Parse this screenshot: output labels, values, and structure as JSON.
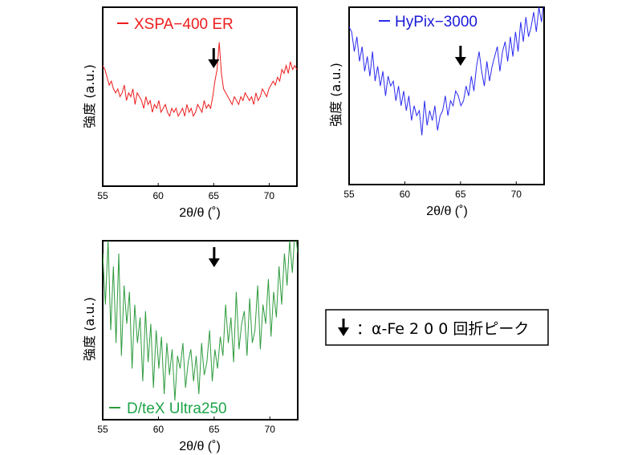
{
  "chart_data": [
    {
      "type": "line",
      "series": [
        {
          "name": "XSPA−400 ER",
          "color": "#ee1c1c",
          "x_start": 55,
          "x_end": 72.5,
          "values": [
            13,
            12,
            10,
            8,
            9,
            7,
            6,
            7,
            5,
            6,
            8,
            4,
            6,
            5,
            7,
            3,
            6,
            5,
            4,
            2,
            5,
            3,
            4,
            1,
            3,
            2,
            4,
            1,
            2,
            3,
            1,
            0,
            2,
            1,
            2,
            0,
            1,
            2,
            0,
            3,
            1,
            2,
            0,
            1,
            3,
            2,
            1,
            4,
            2,
            3,
            2,
            5,
            9,
            12,
            19,
            11,
            7,
            6,
            5,
            4,
            3,
            5,
            4,
            3,
            5,
            4,
            6,
            5,
            4,
            5,
            3,
            6,
            4,
            5,
            7,
            6,
            5,
            7,
            8,
            9,
            8,
            10,
            9,
            12,
            11,
            13,
            11,
            14,
            12,
            13,
            12
          ]
        }
      ],
      "xticks": [
        "55",
        "60",
        "65",
        "70"
      ],
      "xlim": [
        55,
        72.5
      ],
      "xlabel": "2θ/θ (˚)",
      "ylabel": "強度 (a.u.)",
      "arrow_at": 65
    },
    {
      "type": "line",
      "series": [
        {
          "name": "HyPix−3000",
          "color": "#2a2af0",
          "x_start": 55,
          "x_end": 72.5,
          "values": [
            20,
            19,
            15,
            18,
            13,
            16,
            11,
            14,
            10,
            15,
            9,
            12,
            8,
            11,
            6,
            10,
            8,
            9,
            5,
            8,
            4,
            7,
            3,
            6,
            1,
            4,
            2,
            3,
            -2,
            5,
            0,
            3,
            1,
            4,
            -1,
            2,
            3,
            6,
            2,
            5,
            4,
            7,
            6,
            4,
            5,
            8,
            6,
            10,
            7,
            12,
            15,
            11,
            8,
            13,
            9,
            12,
            14,
            16,
            11,
            15,
            17,
            13,
            18,
            14,
            19,
            15,
            21,
            17,
            22,
            18,
            20,
            23,
            19,
            24,
            21,
            26
          ]
        }
      ],
      "xticks": [
        "55",
        "60",
        "65",
        "70"
      ],
      "xlim": [
        55,
        72.5
      ],
      "xlabel": "2θ/θ (˚)",
      "ylabel": "強度 (a.u.)",
      "arrow_at": 65
    },
    {
      "type": "line",
      "series": [
        {
          "name": "D/teX Ultra250",
          "color": "#2e9b3e",
          "x_start": 55,
          "x_end": 72.5,
          "values": [
            20,
            12,
            22,
            8,
            18,
            6,
            20,
            4,
            15,
            9,
            14,
            2,
            12,
            6,
            10,
            0,
            11,
            3,
            9,
            -1,
            8,
            2,
            7,
            -2,
            6,
            1,
            5,
            -3,
            4,
            2,
            6,
            -1,
            3,
            5,
            0,
            4,
            -2,
            6,
            1,
            3,
            8,
            0,
            5,
            2,
            7,
            4,
            12,
            6,
            10,
            3,
            14,
            5,
            9,
            11,
            4,
            13,
            6,
            8,
            15,
            5,
            12,
            9,
            16,
            7,
            14,
            10,
            18,
            12,
            20,
            15,
            22,
            17,
            24,
            20
          ]
        }
      ],
      "xticks": [
        "55",
        "60",
        "65",
        "70"
      ],
      "xlim": [
        55,
        72.5
      ],
      "xlabel": "2θ/θ (˚)",
      "ylabel": "強度 (a.u.)",
      "arrow_at": 65
    }
  ],
  "note": {
    "text": "：α-Fe 2 0 0 回折ピーク"
  }
}
